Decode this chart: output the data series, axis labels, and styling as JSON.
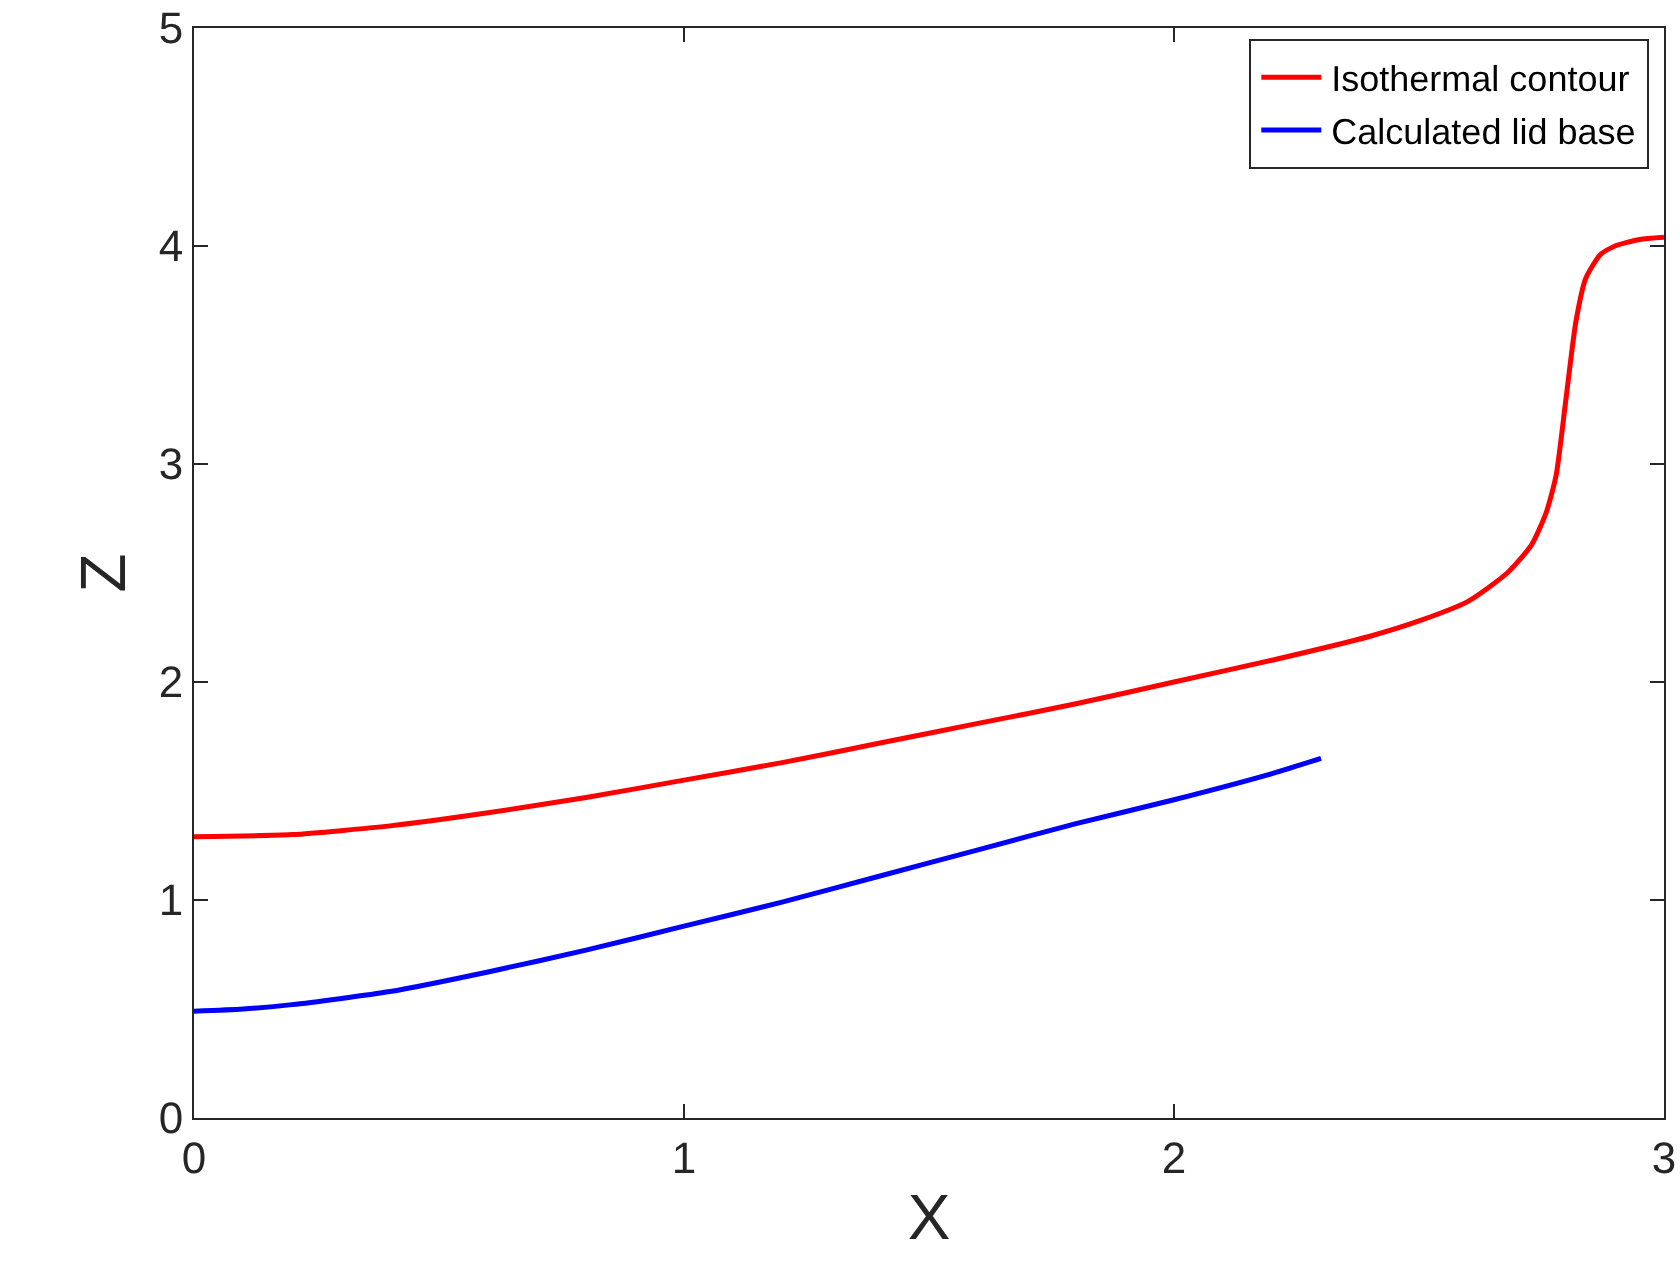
{
  "chart_data": {
    "type": "line",
    "xlabel": "X",
    "ylabel": "Z",
    "xlim": [
      0,
      3
    ],
    "ylim": [
      0,
      5
    ],
    "xticks": [
      0,
      1,
      2,
      3
    ],
    "yticks": [
      0,
      1,
      2,
      3,
      4,
      5
    ],
    "grid": false,
    "legend": "top right",
    "marker": "none",
    "line_style": "solid",
    "series": [
      {
        "name": "Isothermal contour",
        "color": "#ff0000",
        "x": [
          0,
          0.2,
          0.4,
          0.6,
          0.8,
          1,
          1.2,
          1.4,
          1.6,
          1.8,
          2,
          2.2,
          2.4,
          2.5,
          2.6,
          2.68,
          2.73,
          2.76,
          2.78,
          2.8,
          2.82,
          2.84,
          2.87,
          2.9,
          2.95,
          3
        ],
        "values": [
          1.29,
          1.3,
          1.34,
          1.4,
          1.47,
          1.55,
          1.63,
          1.72,
          1.81,
          1.9,
          2.0,
          2.1,
          2.21,
          2.28,
          2.37,
          2.5,
          2.63,
          2.78,
          2.95,
          3.3,
          3.65,
          3.85,
          3.96,
          4.0,
          4.03,
          4.04
        ]
      },
      {
        "name": "Calculated lid base",
        "color": "#0000ff",
        "x": [
          0,
          0.1,
          0.2,
          0.4,
          0.6,
          0.8,
          1,
          1.2,
          1.4,
          1.6,
          1.8,
          2,
          2.2,
          2.3
        ],
        "values": [
          0.49,
          0.5,
          0.52,
          0.58,
          0.67,
          0.77,
          0.88,
          0.99,
          1.11,
          1.23,
          1.35,
          1.46,
          1.58,
          1.65
        ]
      }
    ]
  }
}
